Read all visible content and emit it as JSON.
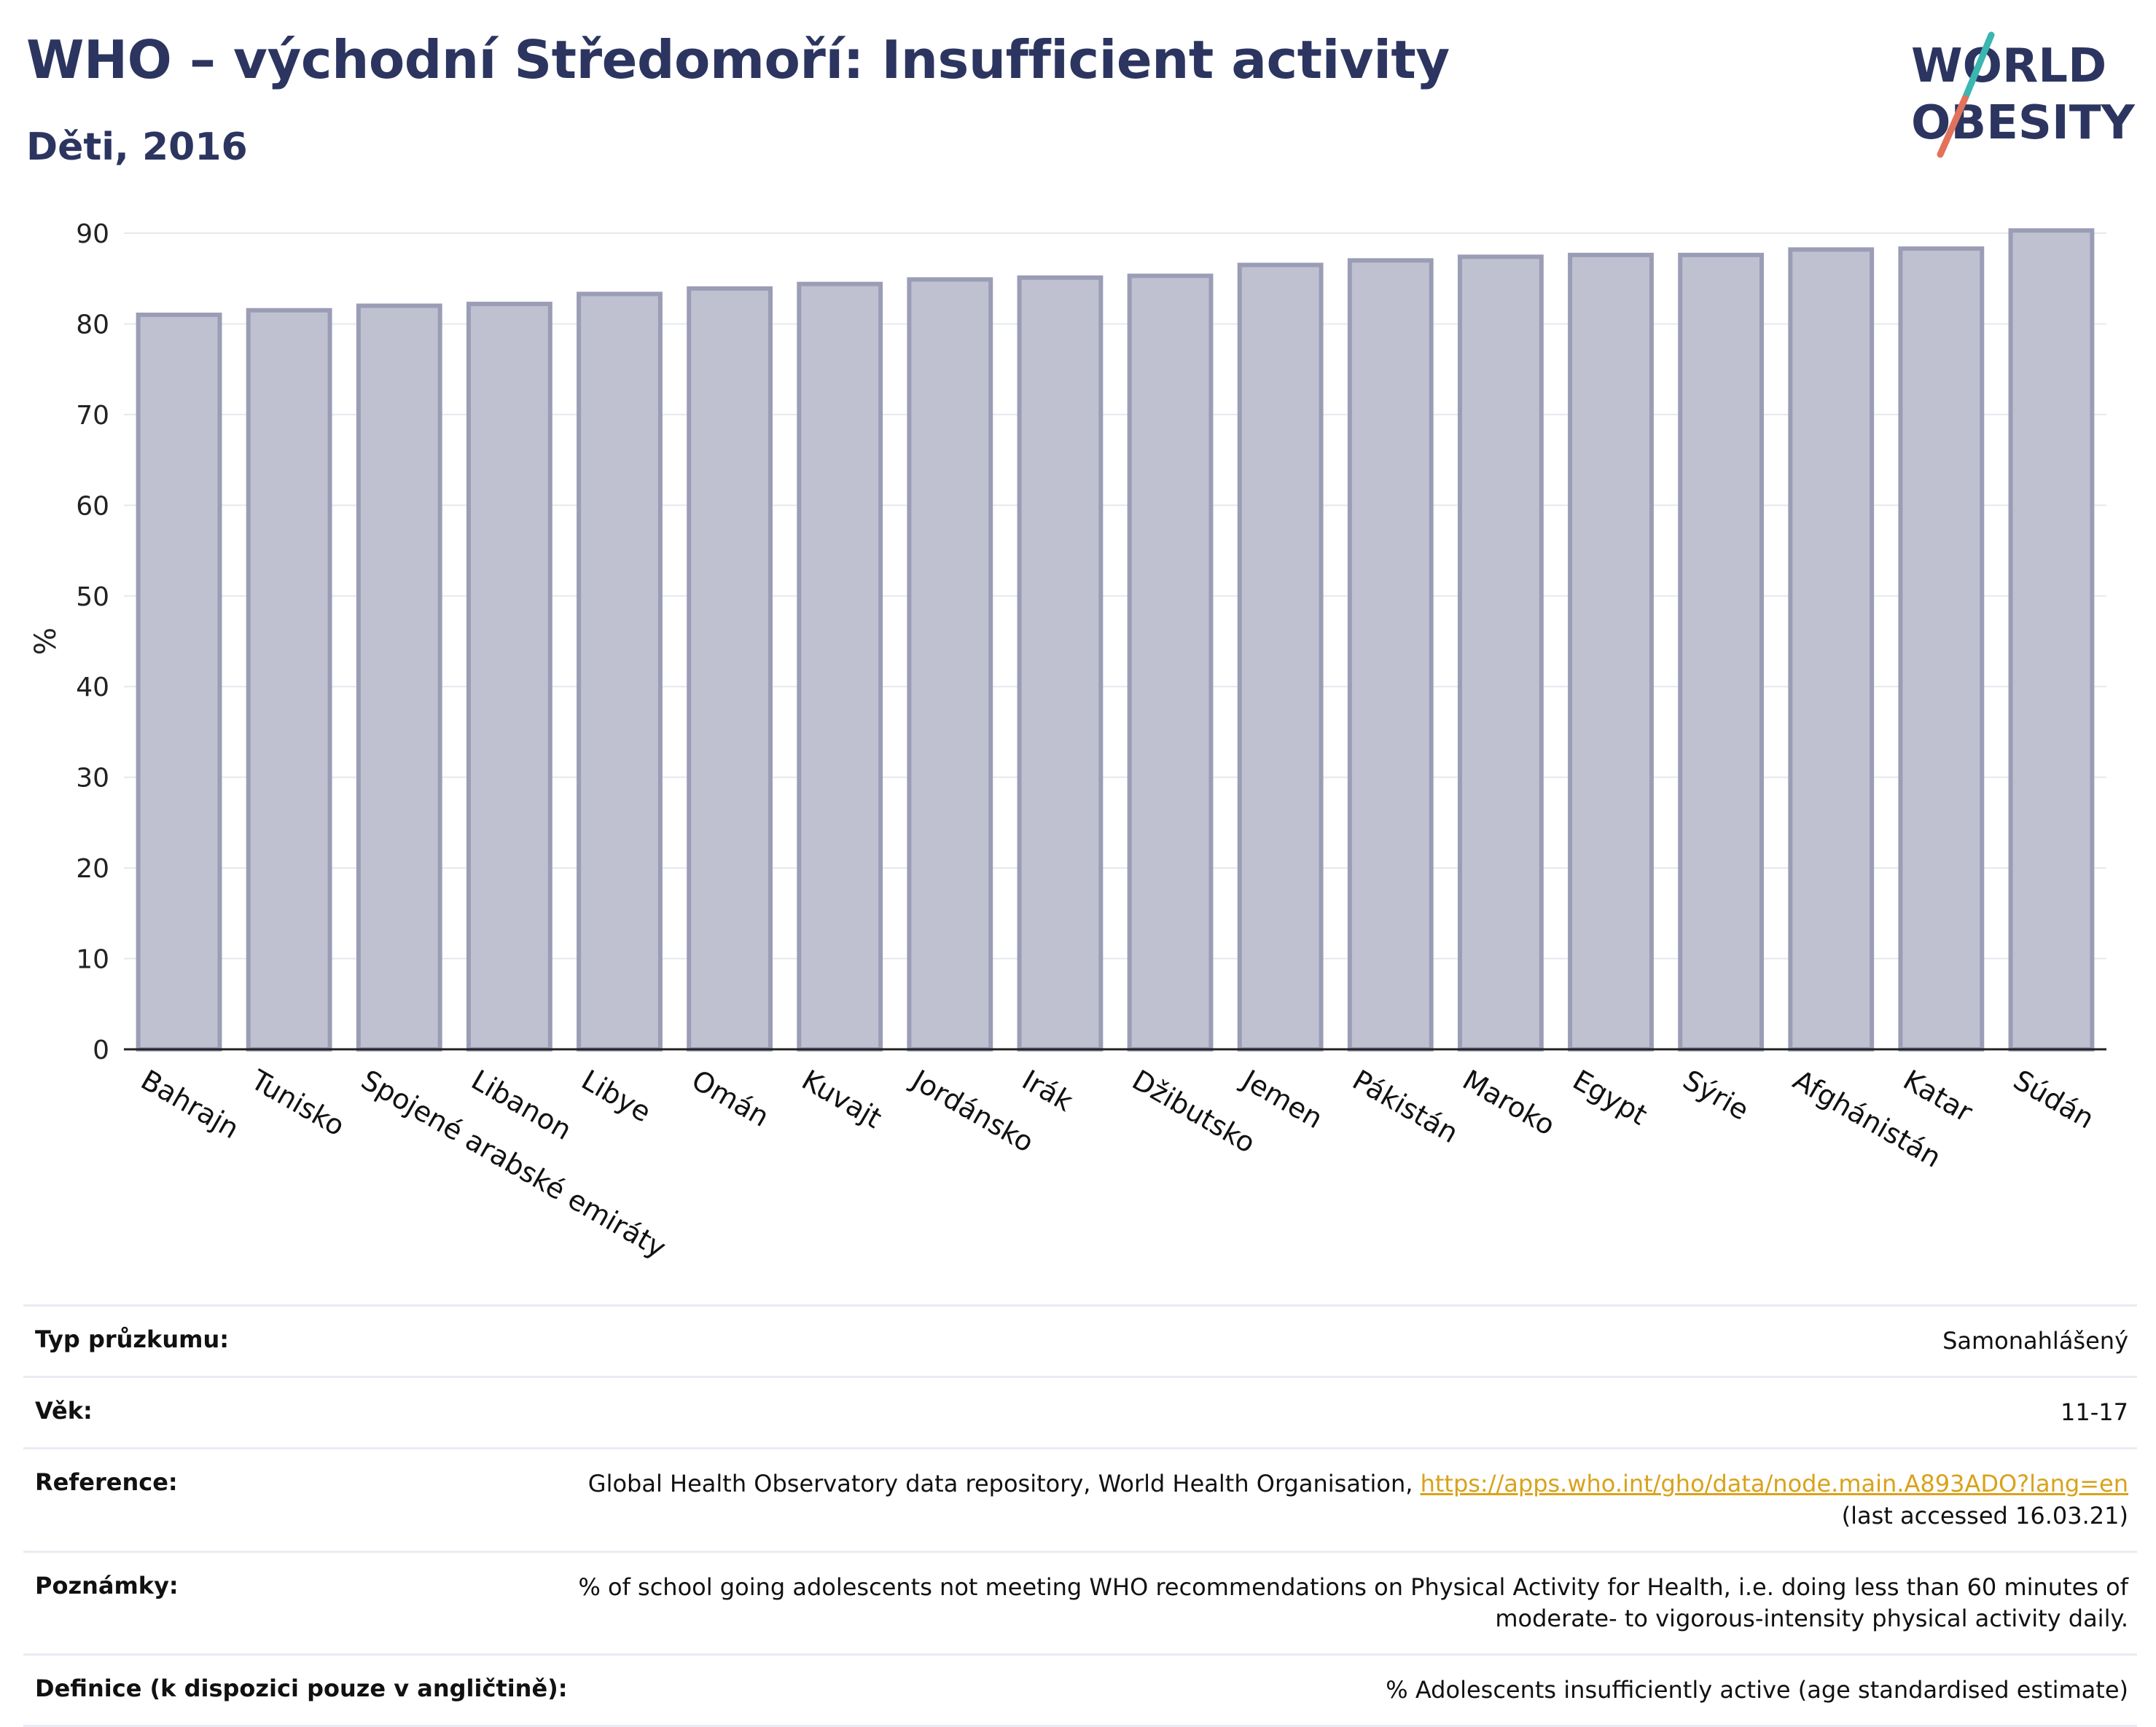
{
  "header": {
    "title": "WHO – východní Středomoří: Insufficient activity",
    "subtitle": "Děti, 2016"
  },
  "logo": {
    "line1": "WORLD",
    "line2": "OBESITY",
    "colors": {
      "text": "#2c3560",
      "slash_top": "#3ab7b0",
      "slash_bottom": "#e2725b"
    }
  },
  "chart_data": {
    "type": "bar",
    "title": "WHO – východní Středomoří: Insufficient activity",
    "subtitle": "Děti, 2016",
    "ylabel": "%",
    "xlabel": "",
    "ylim": [
      0,
      90
    ],
    "yticks": [
      0,
      10,
      20,
      30,
      40,
      50,
      60,
      70,
      80,
      90
    ],
    "grid": true,
    "bar_fill": "#bfc1d0",
    "bar_stroke": "#9a9db5",
    "categories": [
      "Bahrajn",
      "Tunisko",
      "Spojené arabské emiráty",
      "Libanon",
      "Libye",
      "Omán",
      "Kuvajt",
      "Jordánsko",
      "Irák",
      "Džibutsko",
      "Jemen",
      "Pákistán",
      "Maroko",
      "Egypt",
      "Sýrie",
      "Afghánistán",
      "Katar",
      "Súdán"
    ],
    "values": [
      81.0,
      81.5,
      82.0,
      82.2,
      83.3,
      83.9,
      84.4,
      84.9,
      85.1,
      85.3,
      86.5,
      87.0,
      87.4,
      87.6,
      87.6,
      88.2,
      88.3,
      90.3
    ]
  },
  "meta": {
    "survey_label": "Typ průzkumu:",
    "survey_value": "Samonahlášený",
    "age_label": "Věk:",
    "age_value": "11-17",
    "reference_label": "Reference:",
    "reference_text": "Global Health Observatory data repository, World Health Organisation, ",
    "reference_link": "https://apps.who.int/gho/data/node.main.A893ADO?lang=en",
    "reference_accessed": "(last accessed 16.03.21)",
    "notes_label": "Poznámky:",
    "notes_line1": "% of school going adolescents not meeting WHO recommendations on Physical Activity for Health, i.e. doing less than 60 minutes of",
    "notes_line2": "moderate- to vigorous-intensity physical activity daily.",
    "definition_label": "Definice (k dispozici pouze v angličtině):",
    "definition_value": "% Adolescents insufficiently active (age standardised estimate)"
  }
}
